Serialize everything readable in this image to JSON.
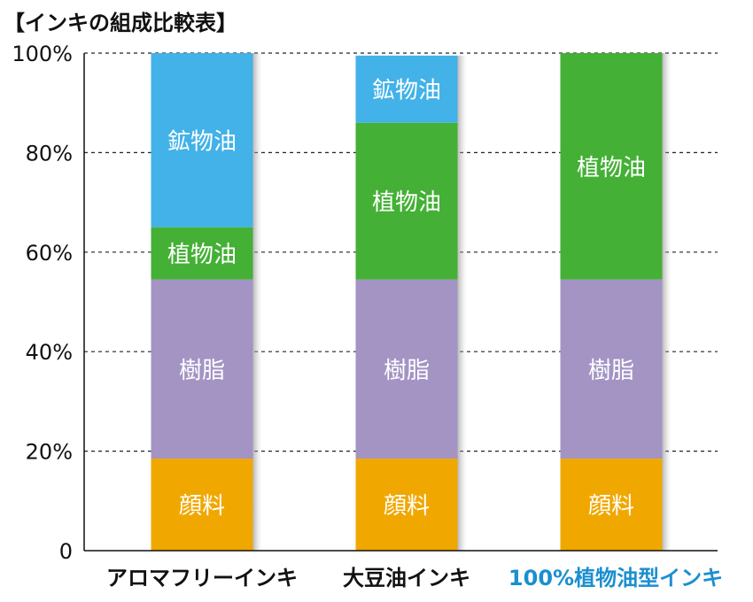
{
  "chart_data": {
    "type": "bar",
    "stacked": true,
    "title": "【インキの組成比較表】",
    "xlabel": "",
    "ylabel": "",
    "ylim": [
      0,
      100
    ],
    "yticks": [
      "0",
      "20%",
      "40%",
      "60%",
      "80%",
      "100%"
    ],
    "grid": "horizontal-dashed",
    "categories": [
      "アロマフリーインキ",
      "大豆油インキ",
      "100%植物油型インキ"
    ],
    "category_colors": [
      "#111111",
      "#111111",
      "#1a8fd0"
    ],
    "series": [
      {
        "name": "顔料",
        "color": "#f0a800",
        "values": [
          18.5,
          18.5,
          18.5
        ]
      },
      {
        "name": "樹脂",
        "color": "#a394c4",
        "values": [
          36,
          36,
          36
        ]
      },
      {
        "name": "植物油",
        "color": "#44b035",
        "values": [
          10.5,
          31.5,
          45.5
        ]
      },
      {
        "name": "鉱物油",
        "color": "#42b2e8",
        "values": [
          35,
          13.5,
          0
        ]
      }
    ]
  }
}
